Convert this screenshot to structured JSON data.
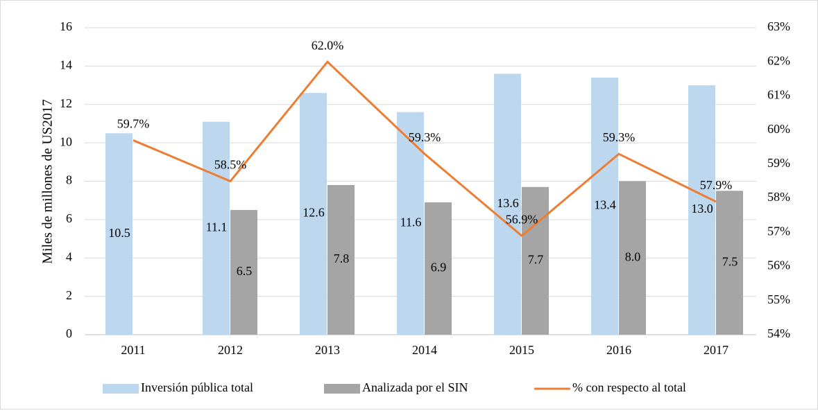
{
  "chart_data": {
    "type": "bar_line",
    "y_axis_label": "Miles de millones de US2017",
    "categories": [
      "2011",
      "2012",
      "2013",
      "2014",
      "2015",
      "2016",
      "2017"
    ],
    "series": [
      {
        "name": "Inversión pública total",
        "color": "#bdd7ee",
        "kind": "bar",
        "values": [
          10.5,
          11.1,
          12.6,
          11.6,
          13.6,
          13.4,
          13.0
        ],
        "value_labels": [
          "10.5",
          "11.1",
          "12.6",
          "11.6",
          "13.6",
          "13.4",
          "13.0"
        ]
      },
      {
        "name": "Analizada por el SIN",
        "color": "#a5a5a5",
        "kind": "bar",
        "values": [
          null,
          6.5,
          7.8,
          6.9,
          7.7,
          8.0,
          7.5
        ],
        "value_labels": [
          null,
          "6.5",
          "7.8",
          "6.9",
          "7.7",
          "8.0",
          "7.5"
        ]
      },
      {
        "name": "% con respecto al total",
        "color": "#ed7d31",
        "kind": "line",
        "axis": "y2",
        "values": [
          59.7,
          58.5,
          62.0,
          59.3,
          56.9,
          59.3,
          57.9
        ],
        "value_labels": [
          "59.7%",
          "58.5%",
          "62.0%",
          "59.3%",
          "56.9%",
          "59.3%",
          "57.9%"
        ]
      }
    ],
    "ylim": [
      0,
      16
    ],
    "yticks": [
      0,
      2,
      4,
      6,
      8,
      10,
      12,
      14,
      16
    ],
    "y2lim": [
      54,
      63
    ],
    "y2ticks": [
      {
        "value": 54,
        "label": "54%"
      },
      {
        "value": 55,
        "label": "55%"
      },
      {
        "value": 56,
        "label": "56%"
      },
      {
        "value": 57,
        "label": "57%"
      },
      {
        "value": 58,
        "label": "58%"
      },
      {
        "value": 59,
        "label": "59%"
      },
      {
        "value": 60,
        "label": "60%"
      },
      {
        "value": 61,
        "label": "61%"
      },
      {
        "value": 62,
        "label": "62%"
      },
      {
        "value": 63,
        "label": "63%"
      }
    ],
    "grid": true,
    "legend": "bottom"
  }
}
